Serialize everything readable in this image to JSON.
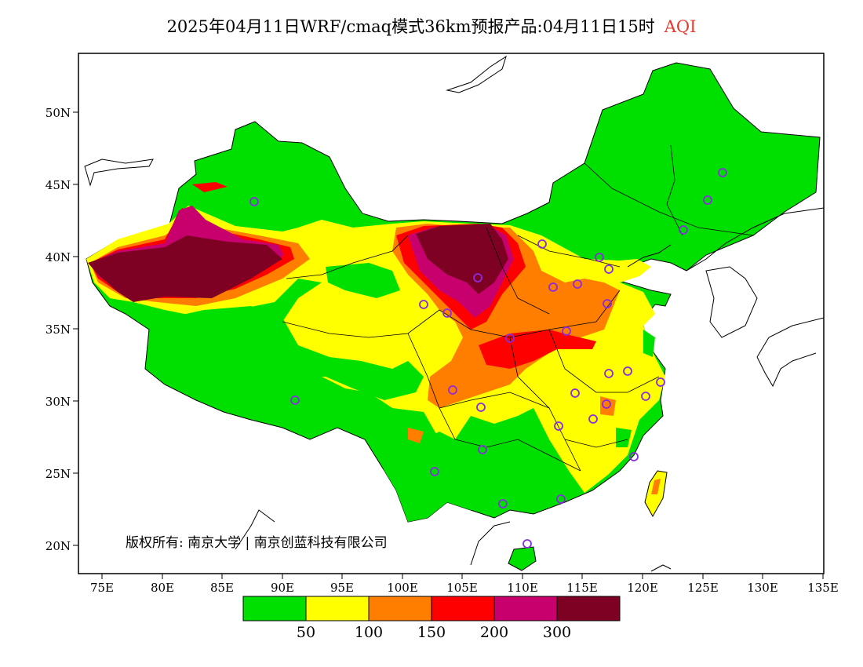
{
  "title": {
    "text": "2025年04月11日WRF/cmaq模式36km预报产品:04月11日15时",
    "variable": "AQI"
  },
  "axes": {
    "lon_ticks": [
      "75E",
      "80E",
      "85E",
      "90E",
      "95E",
      "100E",
      "105E",
      "110E",
      "115E",
      "120E",
      "125E",
      "130E",
      "135E"
    ],
    "lat_ticks": [
      "50N",
      "45N",
      "40N",
      "35N",
      "30N",
      "25N",
      "20N"
    ]
  },
  "colorbar": {
    "colors": [
      "#00e000",
      "#ffff00",
      "#ff7e00",
      "#ff0000",
      "#c8006e",
      "#7e0023"
    ],
    "labels": [
      "50",
      "100",
      "150",
      "200",
      "300"
    ]
  },
  "copyright": "版权所有: 南京大学 | 南京创蓝科技有限公司",
  "colors": {
    "ocean": "#ffffff",
    "boundary": "#000000",
    "station_marker": "#8a2be2"
  }
}
